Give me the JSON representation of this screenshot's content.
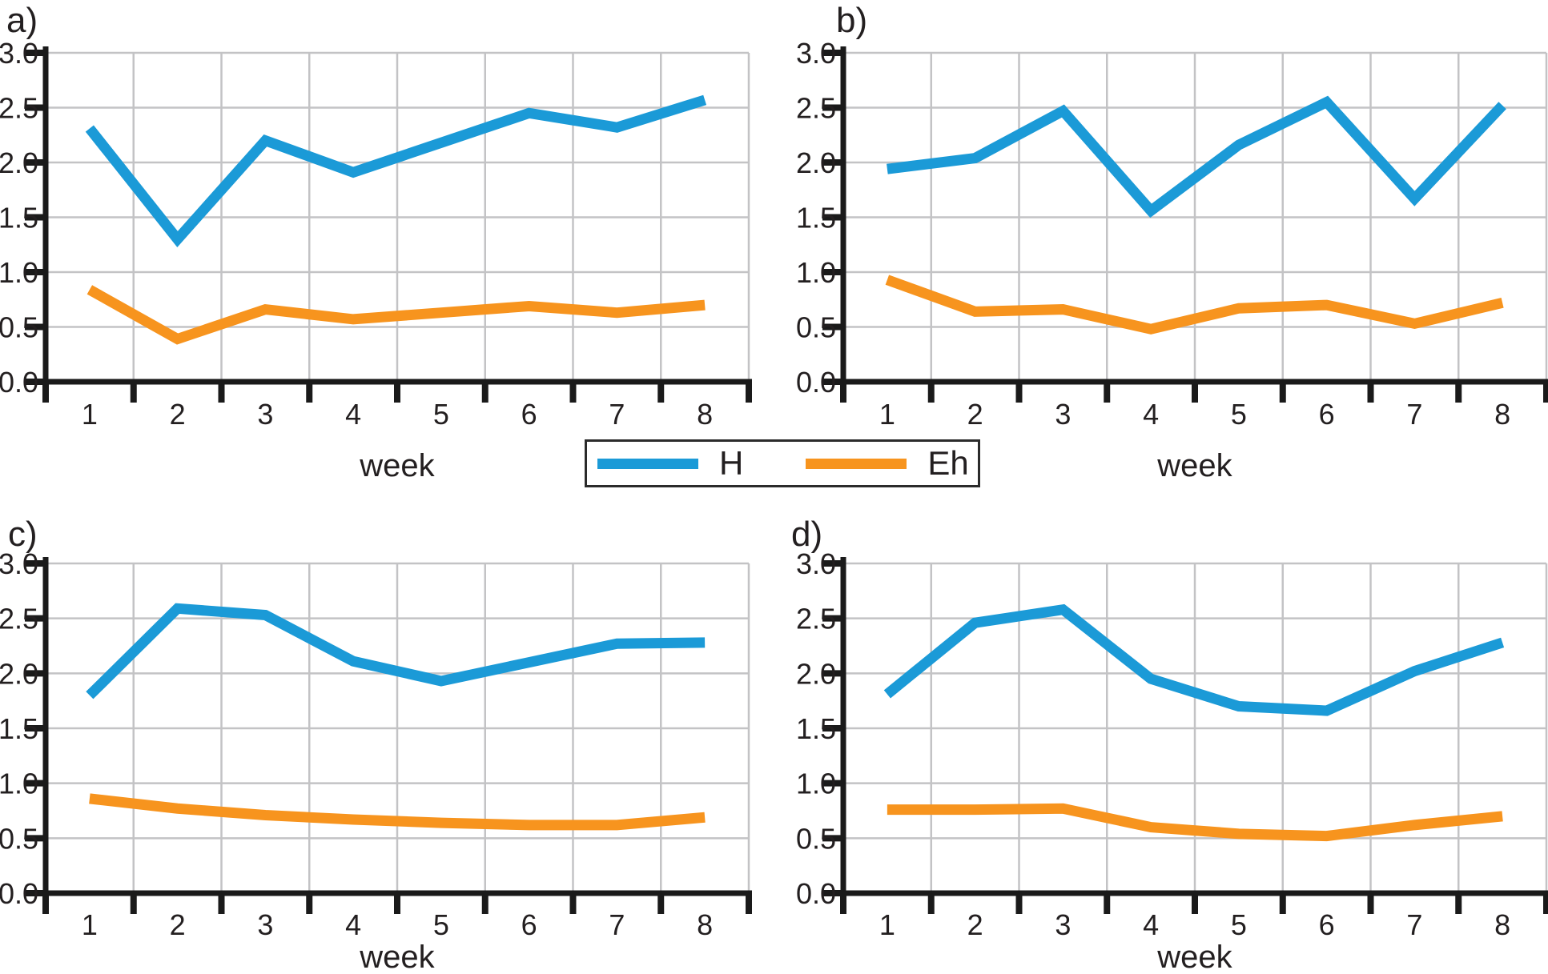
{
  "figure": {
    "background": "#ffffff",
    "grid_color": "#c3c3c5",
    "axis_color": "#1a1a1a",
    "text_color": "#231f20",
    "legend": {
      "items": [
        {
          "label": "H",
          "color": "#1b9ad7"
        },
        {
          "label": "Eh",
          "color": "#f7941e"
        }
      ]
    },
    "axis": {
      "y_tick_labels": [
        "3.0",
        "2.5",
        "2.0",
        "1.5",
        "1.0",
        "0.5",
        "0.0"
      ],
      "x_tick_labels": [
        "1",
        "2",
        "3",
        "4",
        "5",
        "6",
        "7",
        "8"
      ],
      "x_axis_label": "week"
    }
  },
  "chart_data": [
    {
      "id": "a",
      "panel_label": "a)",
      "type": "line",
      "x_label": "week",
      "categories": [
        1,
        2,
        3,
        4,
        5,
        6,
        7,
        8
      ],
      "ylim": [
        0.0,
        3.0
      ],
      "ytick_step": 0.5,
      "grid": true,
      "legend_position": "bottom-center-shared",
      "series": [
        {
          "name": "H",
          "color": "#1b9ad7",
          "values": [
            2.31,
            1.3,
            2.2,
            1.91,
            2.18,
            2.45,
            2.32,
            2.57
          ]
        },
        {
          "name": "Eh",
          "color": "#f7941e",
          "values": [
            0.84,
            0.39,
            0.66,
            0.57,
            0.63,
            0.69,
            0.63,
            0.7
          ]
        }
      ]
    },
    {
      "id": "b",
      "panel_label": "b)",
      "type": "line",
      "x_label": "week",
      "categories": [
        1,
        2,
        3,
        4,
        5,
        6,
        7,
        8
      ],
      "ylim": [
        0.0,
        3.0
      ],
      "ytick_step": 0.5,
      "grid": true,
      "legend_position": "bottom-center-shared",
      "series": [
        {
          "name": "H",
          "color": "#1b9ad7",
          "values": [
            1.94,
            2.04,
            2.47,
            1.56,
            2.16,
            2.55,
            1.67,
            2.52
          ]
        },
        {
          "name": "Eh",
          "color": "#f7941e",
          "values": [
            0.93,
            0.64,
            0.66,
            0.48,
            0.67,
            0.7,
            0.53,
            0.72
          ]
        }
      ]
    },
    {
      "id": "c",
      "panel_label": "c)",
      "type": "line",
      "x_label": "week",
      "categories": [
        1,
        2,
        3,
        4,
        5,
        6,
        7,
        8
      ],
      "ylim": [
        0.0,
        3.0
      ],
      "ytick_step": 0.5,
      "grid": true,
      "legend_position": "bottom-center-shared",
      "series": [
        {
          "name": "H",
          "color": "#1b9ad7",
          "values": [
            1.8,
            2.59,
            2.53,
            2.11,
            1.93,
            2.1,
            2.27,
            2.28
          ]
        },
        {
          "name": "Eh",
          "color": "#f7941e",
          "values": [
            0.86,
            0.77,
            0.71,
            0.67,
            0.64,
            0.62,
            0.62,
            0.69
          ]
        }
      ]
    },
    {
      "id": "d",
      "panel_label": "d)",
      "type": "line",
      "x_label": "week",
      "categories": [
        1,
        2,
        3,
        4,
        5,
        6,
        7,
        8
      ],
      "ylim": [
        0.0,
        3.0
      ],
      "ytick_step": 0.5,
      "grid": true,
      "legend_position": "bottom-center-shared",
      "series": [
        {
          "name": "H",
          "color": "#1b9ad7",
          "values": [
            1.81,
            2.46,
            2.58,
            1.95,
            1.7,
            1.66,
            2.02,
            2.28
          ]
        },
        {
          "name": "Eh",
          "color": "#f7941e",
          "values": [
            0.76,
            0.76,
            0.77,
            0.6,
            0.54,
            0.52,
            0.62,
            0.7
          ]
        }
      ]
    }
  ]
}
